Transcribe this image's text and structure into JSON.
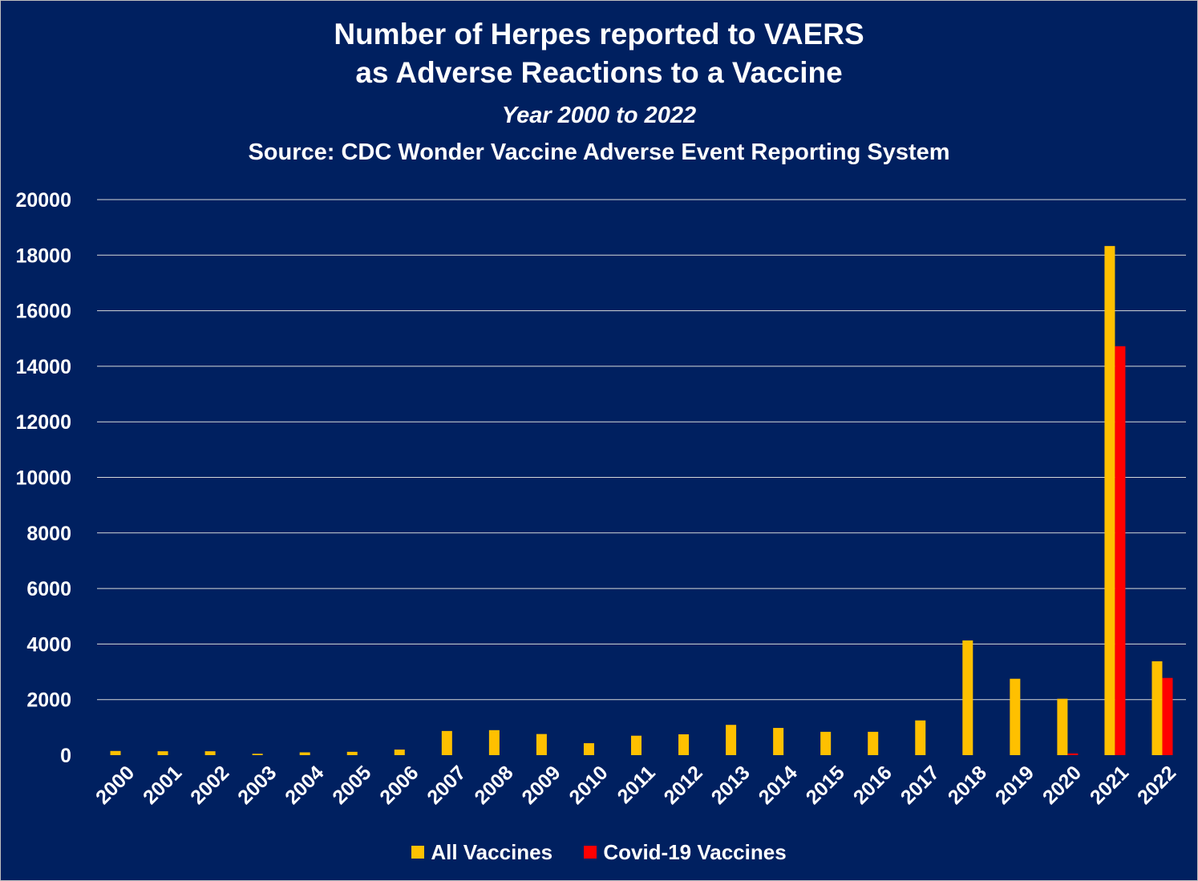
{
  "chart_data": {
    "type": "bar",
    "title_lines": [
      "Number of Herpes reported to VAERS",
      "as Adverse Reactions to a Vaccine"
    ],
    "subtitle": "Year 2000 to 2022",
    "source": "Source:  CDC Wonder Vaccine Adverse Event Reporting System",
    "categories": [
      "2000",
      "2001",
      "2002",
      "2003",
      "2004",
      "2005",
      "2006",
      "2007",
      "2008",
      "2009",
      "2010",
      "2011",
      "2012",
      "2013",
      "2014",
      "2015",
      "2016",
      "2017",
      "2018",
      "2019",
      "2020",
      "2021",
      "2022"
    ],
    "series": [
      {
        "name": "All Vaccines",
        "color": "#FFC000",
        "values": [
          150,
          140,
          140,
          50,
          100,
          120,
          200,
          870,
          900,
          760,
          430,
          700,
          750,
          1090,
          980,
          840,
          840,
          1250,
          4130,
          2750,
          2030,
          18330,
          3380
        ]
      },
      {
        "name": "Covid-19 Vaccines",
        "color": "#FF0000",
        "values": [
          0,
          0,
          0,
          0,
          0,
          0,
          0,
          0,
          0,
          0,
          0,
          0,
          0,
          0,
          0,
          0,
          0,
          0,
          0,
          0,
          60,
          14720,
          2780
        ]
      }
    ],
    "ylim": [
      0,
      20000
    ],
    "yticks": [
      "0",
      "2000",
      "4000",
      "6000",
      "8000",
      "10000",
      "12000",
      "14000",
      "16000",
      "18000",
      "20000"
    ],
    "grid": true,
    "legend_position": "bottom",
    "colors": {
      "background": "#002060",
      "gridline": "#d9d9d9",
      "text": "#FFFFFF"
    }
  }
}
